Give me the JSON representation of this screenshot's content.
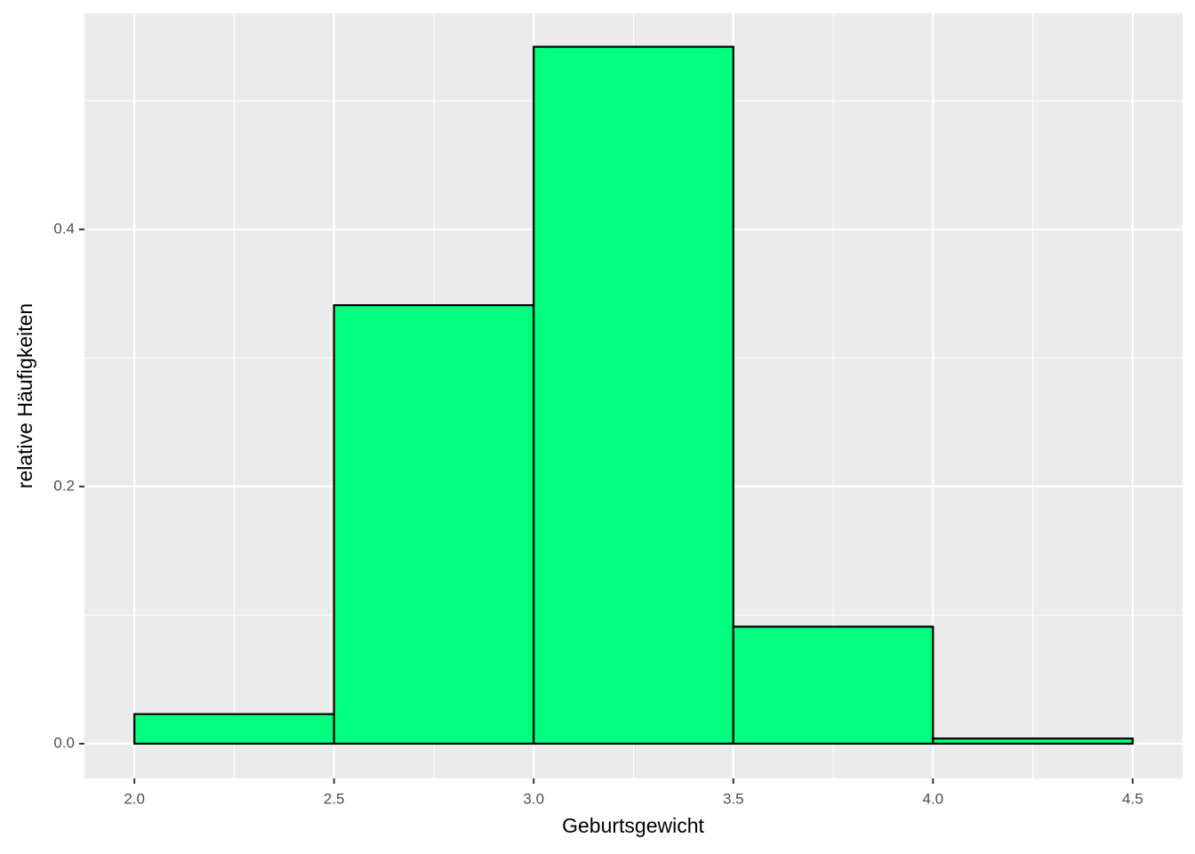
{
  "chart_data": {
    "type": "histogram",
    "x_label": "Geburtsgewicht",
    "y_label": "relative Häufigkeiten",
    "bins": [
      2.0,
      2.5,
      3.0,
      3.5,
      4.0,
      4.5
    ],
    "values": [
      0.023,
      0.341,
      0.542,
      0.091,
      0.004
    ],
    "color": "#00ff7f",
    "edge_color": "#000000",
    "xlim": [
      1.875,
      4.625
    ],
    "ylim": [
      -0.027,
      0.568
    ],
    "xticks": [
      {
        "value": 2,
        "label": "2.0"
      },
      2.5,
      {
        "value": 3,
        "label": "3.0"
      },
      3.5,
      {
        "value": 4,
        "label": "4.0"
      },
      4.5
    ],
    "yticks": [
      {
        "value": 0,
        "label": "0.0"
      },
      0.2,
      0.4
    ],
    "grid": true
  }
}
